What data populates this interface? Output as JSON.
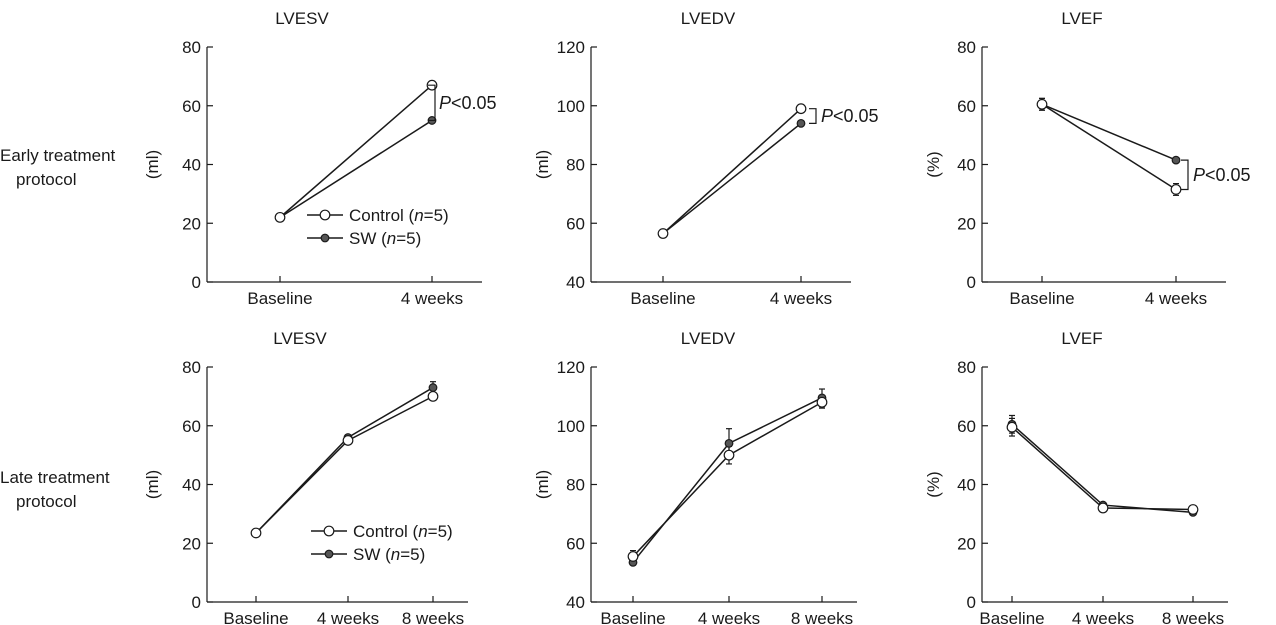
{
  "rows": [
    {
      "label_line1": "Early treatment",
      "label_line2": "protocol"
    },
    {
      "label_line1": "Late treatment",
      "label_line2": "protocol"
    }
  ],
  "legend_labels": {
    "control": [
      "Control (",
      "n",
      "=5)"
    ],
    "sw": [
      "SW (",
      "n",
      "=5)"
    ]
  },
  "colors": {
    "line": "#1a1a1a",
    "control_fill": "#ffffff",
    "sw_fill": "#555555"
  },
  "chart_data": [
    {
      "type": "line",
      "title": "LVESV",
      "ylabel": "(ml)",
      "categories": [
        "Baseline",
        "4 weeks"
      ],
      "ylim": [
        0,
        80
      ],
      "yticks": [
        0,
        20,
        40,
        60,
        80
      ],
      "series": [
        {
          "name": "Control (n=5)",
          "marker": "open",
          "values": [
            22,
            67
          ]
        },
        {
          "name": "SW (n=5)",
          "marker": "filled",
          "values": [
            22,
            55
          ]
        }
      ],
      "annotation": {
        "text_italic": "P",
        "text": "<0.05",
        "between": [
          67,
          55
        ]
      },
      "legend": "bottom-right"
    },
    {
      "type": "line",
      "title": "LVEDV",
      "ylabel": "(ml)",
      "categories": [
        "Baseline",
        "4 weeks"
      ],
      "ylim": [
        40,
        120
      ],
      "yticks": [
        40,
        60,
        80,
        100,
        120
      ],
      "series": [
        {
          "name": "Control (n=5)",
          "marker": "open",
          "values": [
            56.5,
            99
          ]
        },
        {
          "name": "SW (n=5)",
          "marker": "filled",
          "values": [
            56.5,
            94
          ]
        }
      ],
      "annotation": {
        "text_italic": "P",
        "text": "<0.05",
        "between": [
          99,
          94
        ]
      }
    },
    {
      "type": "line",
      "title": "LVEF",
      "ylabel": "(%)",
      "categories": [
        "Baseline",
        "4 weeks"
      ],
      "ylim": [
        0,
        80
      ],
      "yticks": [
        0,
        20,
        40,
        60,
        80
      ],
      "series": [
        {
          "name": "Control (n=5)",
          "marker": "open",
          "values": [
            60.5,
            31.5
          ],
          "errors": [
            2,
            2
          ]
        },
        {
          "name": "SW (n=5)",
          "marker": "filled",
          "values": [
            60.5,
            41.5
          ],
          "errors": [
            2,
            0
          ]
        }
      ],
      "annotation": {
        "text_italic": "P",
        "text": "<0.05",
        "between": [
          41.5,
          31.5
        ]
      }
    },
    {
      "type": "line",
      "title": "LVESV",
      "ylabel": "(ml)",
      "categories": [
        "Baseline",
        "4 weeks",
        "8 weeks"
      ],
      "ylim": [
        0,
        80
      ],
      "yticks": [
        0,
        20,
        40,
        60,
        80
      ],
      "series": [
        {
          "name": "Control (n=5)",
          "marker": "open",
          "values": [
            23.5,
            55,
            70
          ],
          "errors": [
            0,
            0,
            0
          ]
        },
        {
          "name": "SW (n=5)",
          "marker": "filled",
          "values": [
            23.5,
            56,
            73
          ],
          "errors": [
            0,
            0,
            2
          ]
        }
      ],
      "legend": "bottom-right"
    },
    {
      "type": "line",
      "title": "LVEDV",
      "ylabel": "(ml)",
      "categories": [
        "Baseline",
        "4 weeks",
        "8 weeks"
      ],
      "ylim": [
        40,
        120
      ],
      "yticks": [
        40,
        60,
        80,
        100,
        120
      ],
      "series": [
        {
          "name": "Control (n=5)",
          "marker": "open",
          "values": [
            55.5,
            90,
            108
          ],
          "errors": [
            2,
            3,
            2
          ]
        },
        {
          "name": "SW (n=5)",
          "marker": "filled",
          "values": [
            53.5,
            94,
            109.5
          ],
          "errors": [
            0,
            5,
            3
          ]
        }
      ]
    },
    {
      "type": "line",
      "title": "LVEF",
      "ylabel": "(%)",
      "categories": [
        "Baseline",
        "4 weeks",
        "8 weeks"
      ],
      "ylim": [
        0,
        80
      ],
      "yticks": [
        0,
        20,
        40,
        60,
        80
      ],
      "series": [
        {
          "name": "Control (n=5)",
          "marker": "open",
          "values": [
            59.5,
            32,
            31.5
          ],
          "errors": [
            3,
            0,
            0
          ]
        },
        {
          "name": "SW (n=5)",
          "marker": "filled",
          "values": [
            60.5,
            33,
            30.5
          ],
          "errors": [
            3,
            0,
            0
          ]
        }
      ]
    }
  ]
}
